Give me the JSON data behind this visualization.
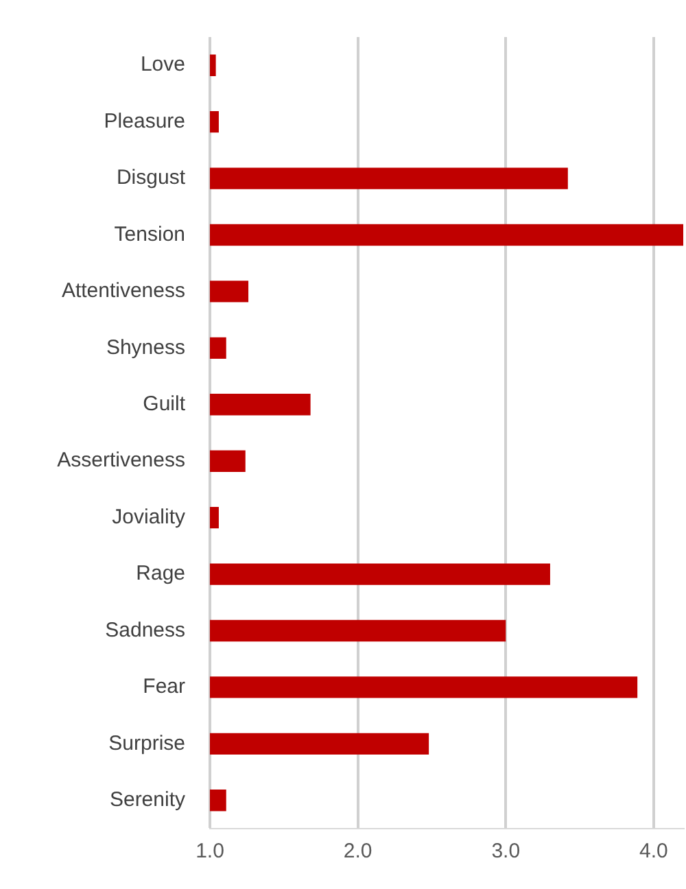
{
  "chart_data": {
    "type": "bar",
    "orientation": "horizontal",
    "categories": [
      "Love",
      "Pleasure",
      "Disgust",
      "Tension",
      "Attentiveness",
      "Shyness",
      "Guilt",
      "Assertiveness",
      "Joviality",
      "Rage",
      "Sadness",
      "Fear",
      "Surprise",
      "Serenity"
    ],
    "values": [
      1.04,
      1.06,
      3.42,
      4.2,
      1.26,
      1.11,
      1.68,
      1.24,
      1.06,
      3.3,
      3.0,
      3.89,
      2.48,
      1.11
    ],
    "color": "#c00000",
    "xlim": [
      1.0,
      4.2
    ],
    "xticks": [
      {
        "value": 1,
        "label": "1.0"
      },
      {
        "value": 2,
        "label": "2.0"
      },
      {
        "value": 3,
        "label": "3.0"
      },
      {
        "value": 4,
        "label": "4.0"
      }
    ],
    "grid": "x"
  }
}
